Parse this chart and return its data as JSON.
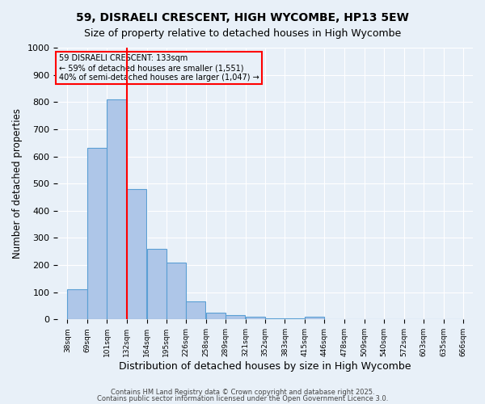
{
  "title1": "59, DISRAELI CRESCENT, HIGH WYCOMBE, HP13 5EW",
  "title2": "Size of property relative to detached houses in High Wycombe",
  "xlabel": "Distribution of detached houses by size in High Wycombe",
  "ylabel": "Number of detached properties",
  "bin_labels": [
    "38sqm",
    "69sqm",
    "101sqm",
    "132sqm",
    "164sqm",
    "195sqm",
    "226sqm",
    "258sqm",
    "289sqm",
    "321sqm",
    "352sqm",
    "383sqm",
    "415sqm",
    "446sqm",
    "478sqm",
    "509sqm",
    "540sqm",
    "572sqm",
    "603sqm",
    "635sqm",
    "666sqm"
  ],
  "bin_left_edges": [
    38,
    69,
    101,
    132,
    164,
    195,
    226,
    258,
    289,
    321,
    352,
    383,
    415,
    446,
    478,
    509,
    540,
    572,
    603,
    635
  ],
  "bar_heights": [
    110,
    630,
    810,
    480,
    260,
    210,
    65,
    25,
    15,
    10,
    5,
    5,
    10,
    0,
    0,
    0,
    0,
    0,
    0,
    0
  ],
  "bar_color": "#aec6e8",
  "bar_edge_color": "#5a9fd4",
  "red_line_x": 133,
  "annotation_title": "59 DISRAELI CRESCENT: 133sqm",
  "annotation_line1": "← 59% of detached houses are smaller (1,551)",
  "annotation_line2": "40% of semi-detached houses are larger (1,047) →",
  "annotation_box_color": "#ff0000",
  "ylim": [
    0,
    1000
  ],
  "yticks": [
    0,
    100,
    200,
    300,
    400,
    500,
    600,
    700,
    800,
    900,
    1000
  ],
  "footer1": "Contains HM Land Registry data © Crown copyright and database right 2025.",
  "footer2": "Contains public sector information licensed under the Open Government Licence 3.0.",
  "background_color": "#e8f0f8",
  "grid_color": "#ffffff"
}
